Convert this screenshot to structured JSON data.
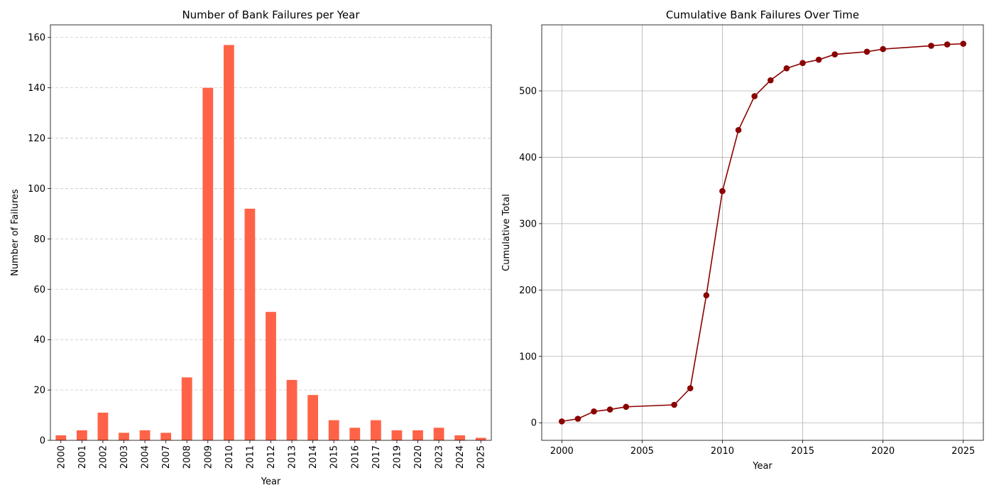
{
  "chart_data": [
    {
      "type": "bar",
      "title": "Number of Bank Failures per Year",
      "xlabel": "Year",
      "ylabel": "Number of Failures",
      "categories": [
        "2000",
        "2001",
        "2002",
        "2003",
        "2004",
        "2007",
        "2008",
        "2009",
        "2010",
        "2011",
        "2012",
        "2013",
        "2014",
        "2015",
        "2016",
        "2017",
        "2019",
        "2020",
        "2023",
        "2024",
        "2025"
      ],
      "values": [
        2,
        4,
        11,
        3,
        4,
        3,
        25,
        140,
        157,
        92,
        51,
        24,
        18,
        8,
        5,
        8,
        4,
        4,
        5,
        2,
        1
      ],
      "ylim": [
        0,
        165
      ],
      "yticks": [
        0,
        20,
        40,
        60,
        80,
        100,
        120,
        140,
        160
      ],
      "grid": "y-dashed",
      "color": "#ff6347",
      "x_tick_rotation": "vertical"
    },
    {
      "type": "line",
      "title": "Cumulative Bank Failures Over Time",
      "xlabel": "Year",
      "ylabel": "Cumulative Total",
      "x": [
        2000,
        2001,
        2002,
        2003,
        2004,
        2007,
        2008,
        2009,
        2010,
        2011,
        2012,
        2013,
        2014,
        2015,
        2016,
        2017,
        2019,
        2020,
        2023,
        2024,
        2025
      ],
      "y": [
        2,
        6,
        17,
        20,
        24,
        27,
        52,
        192,
        349,
        441,
        492,
        516,
        534,
        542,
        547,
        555,
        559,
        563,
        568,
        570,
        571
      ],
      "xlim": [
        1998.75,
        2026.25
      ],
      "ylim": [
        -26.5,
        599.5
      ],
      "xticks": [
        2000,
        2005,
        2010,
        2015,
        2020,
        2025
      ],
      "yticks": [
        0,
        100,
        200,
        300,
        400,
        500
      ],
      "grid": "both",
      "color": "#8b0000",
      "marker": "circle"
    }
  ]
}
